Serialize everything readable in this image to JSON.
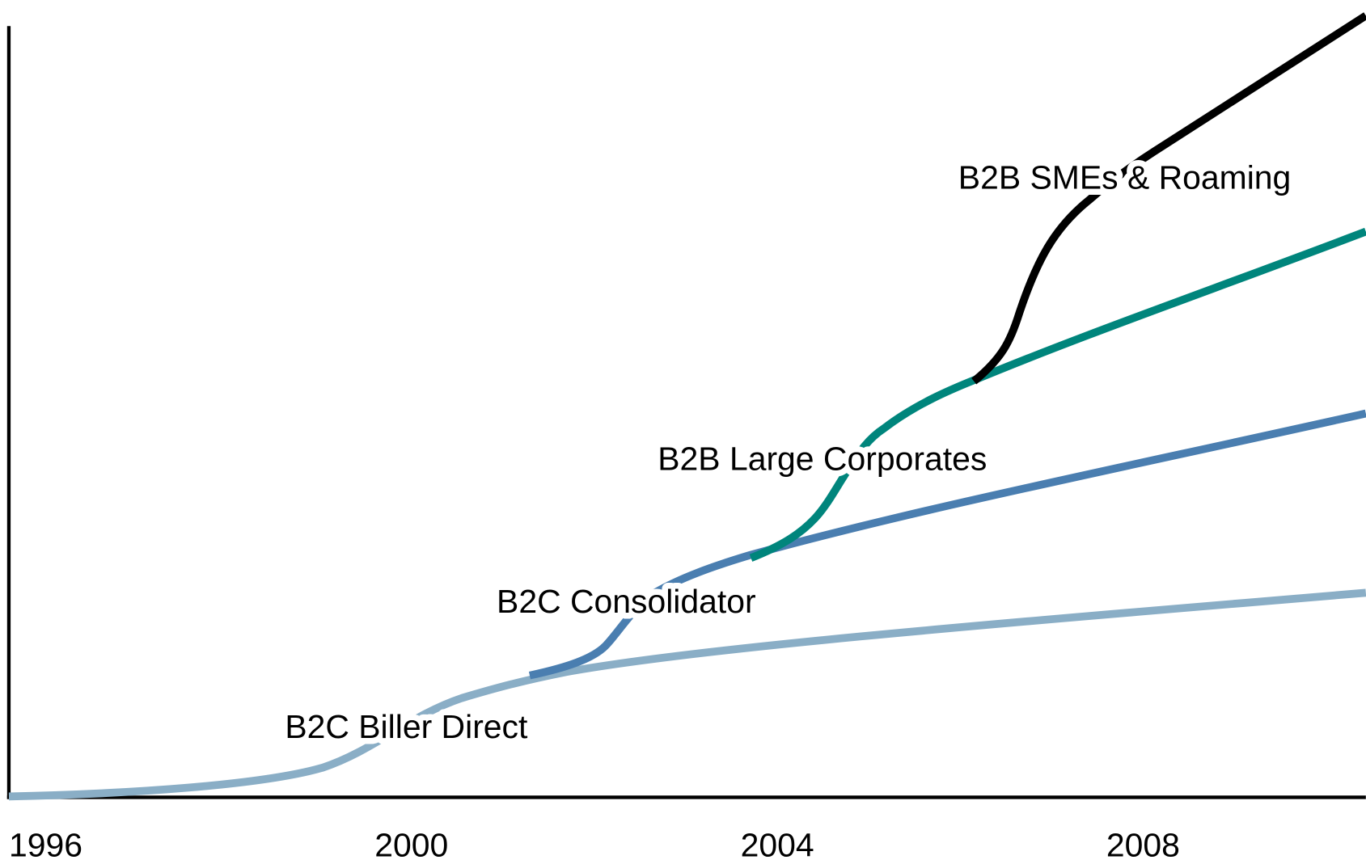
{
  "x_axis": {
    "labels": [
      "1996",
      "2000",
      "2004",
      "2008"
    ]
  },
  "curves": [
    {
      "label": "B2C Biller Direct"
    },
    {
      "label": "B2C Consolidator"
    },
    {
      "label": "B2B Large Corporates"
    },
    {
      "label": "B2B SMEs & Roaming"
    }
  ]
}
